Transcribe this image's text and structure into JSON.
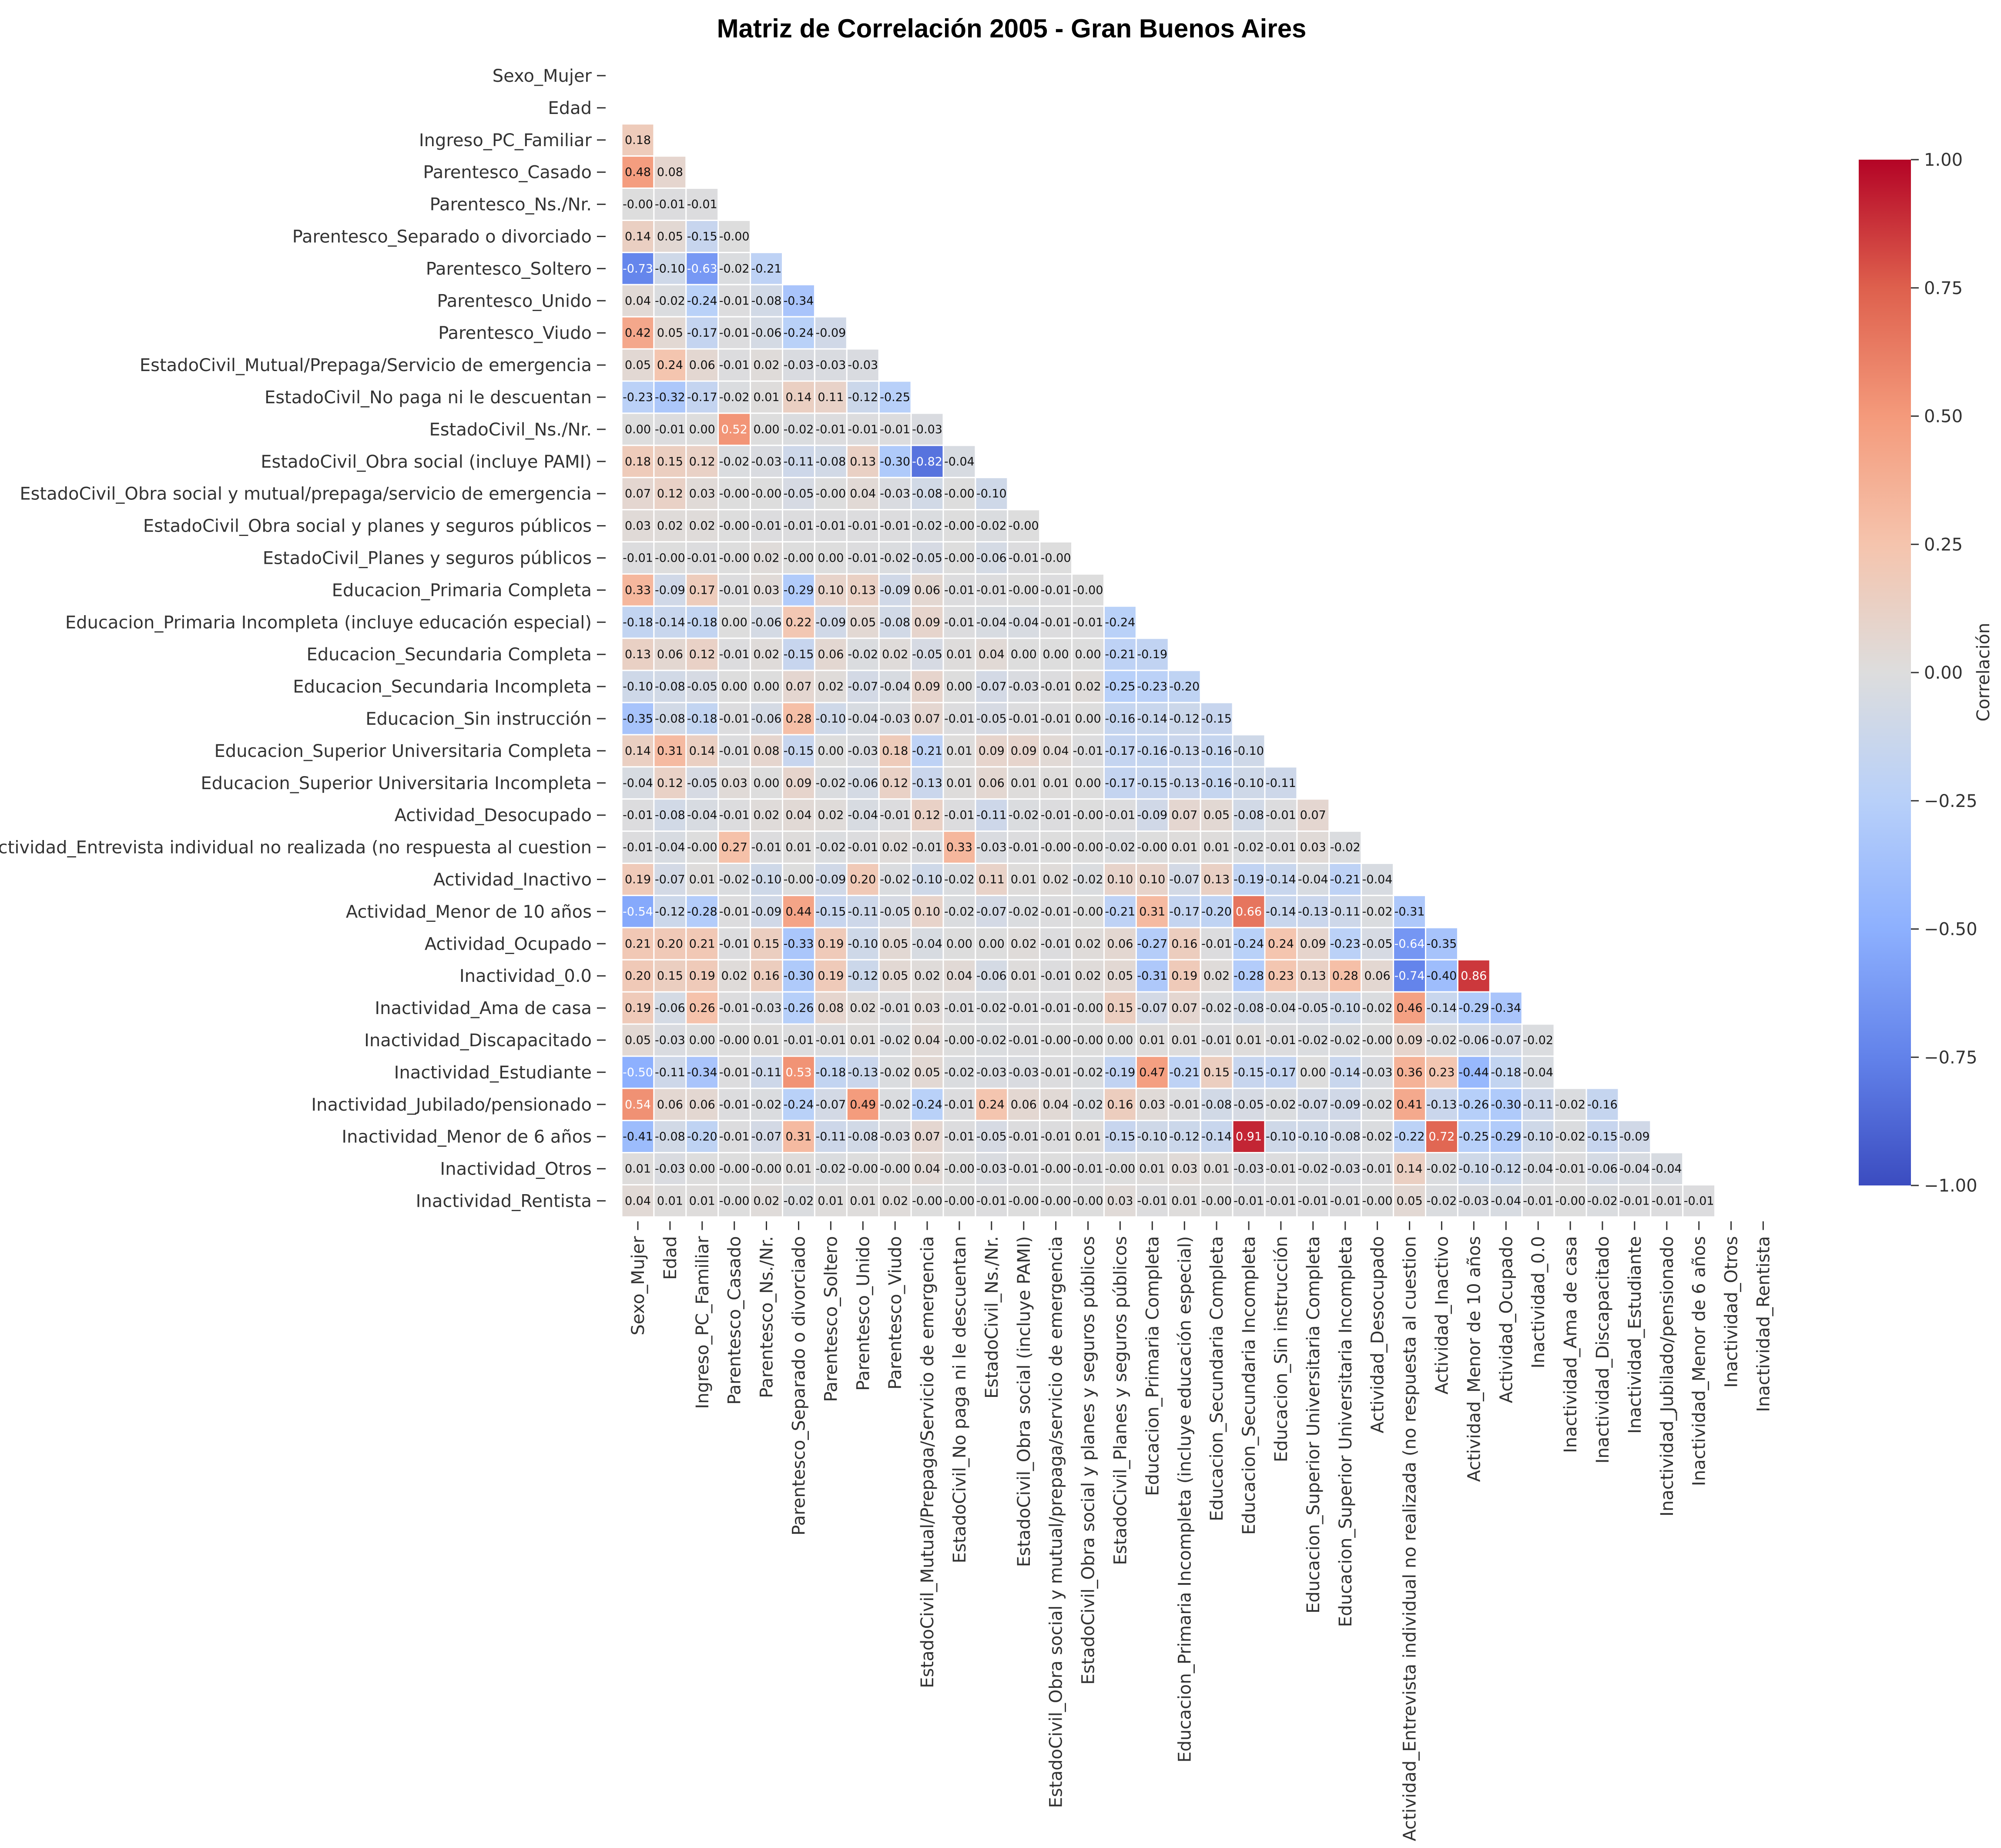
{
  "chart_data": {
    "type": "heatmap",
    "title": "Matriz de Correlación 2005 - Gran Buenos Aires",
    "colorbar_label": "Correlación",
    "colorbar_ticks": [
      "1.00",
      "0.75",
      "0.50",
      "0.25",
      "0.00",
      "−0.25",
      "−0.50",
      "−0.75",
      "−1.00"
    ],
    "colorbar_range": [
      -1,
      1
    ],
    "colormap": "coolwarm",
    "mask": "upper triangle incl. diagonal",
    "labels": [
      "Sexo_Mujer",
      "Edad",
      "Ingreso_PC_Familiar",
      "Parentesco_Casado",
      "Parentesco_Ns./Nr.",
      "Parentesco_Separado o divorciado",
      "Parentesco_Soltero",
      "Parentesco_Unido",
      "Parentesco_Viudo",
      "EstadoCivil_Mutual/Prepaga/Servicio de emergencia",
      "EstadoCivil_No paga ni le descuentan",
      "EstadoCivil_Ns./Nr.",
      "EstadoCivil_Obra social (incluye PAMI)",
      "EstadoCivil_Obra social y mutual/prepaga/servicio de emergencia",
      "EstadoCivil_Obra social y planes y seguros públicos",
      "EstadoCivil_Planes y seguros públicos",
      "Educacion_Primaria Completa",
      "Educacion_Primaria Incompleta (incluye educación especial)",
      "Educacion_Secundaria Completa",
      "Educacion_Secundaria Incompleta",
      "Educacion_Sin instrucción",
      "Educacion_Superior Universitaria Completa",
      "Educacion_Superior Universitaria Incompleta",
      "Actividad_Desocupado",
      "Actividad_Entrevista individual no realizada (no respuesta al cuestion",
      "Actividad_Inactivo",
      "Actividad_Menor de 10 años",
      "Actividad_Ocupado",
      "Inactividad_0.0",
      "Inactividad_Ama de casa",
      "Inactividad_Discapacitado",
      "Inactividad_Estudiante",
      "Inactividad_Jubilado/pensionado",
      "Inactividad_Menor de 6 años",
      "Inactividad_Otros",
      "Inactividad_Rentista"
    ],
    "values": [
      [],
      [],
      [
        "0.18"
      ],
      [
        "0.48",
        "0.08"
      ],
      [
        "-0.00",
        "-0.01",
        "-0.01"
      ],
      [
        "0.14",
        "0.05",
        "-0.15",
        "-0.00"
      ],
      [
        "-0.73",
        "-0.10",
        "-0.63",
        "-0.02",
        "-0.21"
      ],
      [
        "0.04",
        "-0.02",
        "-0.24",
        "-0.01",
        "-0.08",
        "-0.34"
      ],
      [
        "0.42",
        "0.05",
        "-0.17",
        "-0.01",
        "-0.06",
        "-0.24",
        "-0.09"
      ],
      [
        "0.05",
        "0.24",
        "0.06",
        "-0.01",
        "0.02",
        "-0.03",
        "-0.03",
        "-0.03"
      ],
      [
        "-0.23",
        "-0.32",
        "-0.17",
        "-0.02",
        "0.01",
        "0.14",
        "0.11",
        "-0.12",
        "-0.25"
      ],
      [
        "0.00",
        "-0.01",
        "0.00",
        "0.52",
        "0.00",
        "-0.02",
        "-0.01",
        "-0.01",
        "-0.01",
        "-0.03"
      ],
      [
        "0.18",
        "0.15",
        "0.12",
        "-0.02",
        "-0.03",
        "-0.11",
        "-0.08",
        "0.13",
        "-0.30",
        "-0.82",
        "-0.04"
      ],
      [
        "0.07",
        "0.12",
        "0.03",
        "-0.00",
        "-0.00",
        "-0.05",
        "-0.00",
        "0.04",
        "-0.03",
        "-0.08",
        "-0.00",
        "-0.10"
      ],
      [
        "0.03",
        "0.02",
        "0.02",
        "-0.00",
        "-0.01",
        "-0.01",
        "-0.01",
        "-0.01",
        "-0.01",
        "-0.02",
        "-0.00",
        "-0.02",
        "-0.00"
      ],
      [
        "-0.01",
        "-0.00",
        "-0.01",
        "-0.00",
        "0.02",
        "-0.00",
        "0.00",
        "-0.01",
        "-0.02",
        "-0.05",
        "-0.00",
        "-0.06",
        "-0.01",
        "-0.00"
      ],
      [
        "0.33",
        "-0.09",
        "0.17",
        "-0.01",
        "0.03",
        "-0.29",
        "0.10",
        "0.13",
        "-0.09",
        "0.06",
        "-0.01",
        "-0.01",
        "-0.00",
        "-0.01",
        "-0.00"
      ],
      [
        "-0.18",
        "-0.14",
        "-0.18",
        "0.00",
        "-0.06",
        "0.22",
        "-0.09",
        "0.05",
        "-0.08",
        "0.09",
        "-0.01",
        "-0.04",
        "-0.04",
        "-0.01",
        "-0.01",
        "-0.24"
      ],
      [
        "0.13",
        "0.06",
        "0.12",
        "-0.01",
        "0.02",
        "-0.15",
        "0.06",
        "-0.02",
        "0.02",
        "-0.05",
        "0.01",
        "0.04",
        "0.00",
        "0.00",
        "0.00",
        "-0.21",
        "-0.19"
      ],
      [
        "-0.10",
        "-0.08",
        "-0.05",
        "0.00",
        "0.00",
        "0.07",
        "0.02",
        "-0.07",
        "-0.04",
        "0.09",
        "0.00",
        "-0.07",
        "-0.03",
        "-0.01",
        "0.02",
        "-0.25",
        "-0.23",
        "-0.20"
      ],
      [
        "-0.35",
        "-0.08",
        "-0.18",
        "-0.01",
        "-0.06",
        "0.28",
        "-0.10",
        "-0.04",
        "-0.03",
        "0.07",
        "-0.01",
        "-0.05",
        "-0.01",
        "-0.01",
        "0.00",
        "-0.16",
        "-0.14",
        "-0.12",
        "-0.15"
      ],
      [
        "0.14",
        "0.31",
        "0.14",
        "-0.01",
        "0.08",
        "-0.15",
        "0.00",
        "-0.03",
        "0.18",
        "-0.21",
        "0.01",
        "0.09",
        "0.09",
        "0.04",
        "-0.01",
        "-0.17",
        "-0.16",
        "-0.13",
        "-0.16",
        "-0.10"
      ],
      [
        "-0.04",
        "0.12",
        "-0.05",
        "0.03",
        "0.00",
        "0.09",
        "-0.02",
        "-0.06",
        "0.12",
        "-0.13",
        "0.01",
        "0.06",
        "0.01",
        "0.01",
        "0.00",
        "-0.17",
        "-0.15",
        "-0.13",
        "-0.16",
        "-0.10",
        "-0.11"
      ],
      [
        "-0.01",
        "-0.08",
        "-0.04",
        "-0.01",
        "0.02",
        "0.04",
        "0.02",
        "-0.04",
        "-0.01",
        "0.12",
        "-0.01",
        "-0.11",
        "-0.02",
        "-0.01",
        "-0.00",
        "-0.01",
        "-0.09",
        "0.07",
        "0.05",
        "-0.08",
        "-0.01",
        "0.07"
      ],
      [
        "-0.01",
        "-0.04",
        "-0.00",
        "0.27",
        "-0.01",
        "0.01",
        "-0.02",
        "-0.01",
        "0.02",
        "-0.01",
        "0.33",
        "-0.03",
        "-0.01",
        "-0.00",
        "-0.00",
        "-0.02",
        "-0.00",
        "0.01",
        "0.01",
        "-0.02",
        "-0.01",
        "0.03",
        "-0.02"
      ],
      [
        "0.19",
        "-0.07",
        "0.01",
        "-0.02",
        "-0.10",
        "-0.00",
        "-0.09",
        "0.20",
        "-0.02",
        "-0.10",
        "-0.02",
        "0.11",
        "0.01",
        "0.02",
        "-0.02",
        "0.10",
        "0.10",
        "-0.07",
        "0.13",
        "-0.19",
        "-0.14",
        "-0.04",
        "-0.21",
        "-0.04"
      ],
      [
        "-0.54",
        "-0.12",
        "-0.28",
        "-0.01",
        "-0.09",
        "0.44",
        "-0.15",
        "-0.11",
        "-0.05",
        "0.10",
        "-0.02",
        "-0.07",
        "-0.02",
        "-0.01",
        "-0.00",
        "-0.21",
        "0.31",
        "-0.17",
        "-0.20",
        "0.66",
        "-0.14",
        "-0.13",
        "-0.11",
        "-0.02",
        "-0.31"
      ],
      [
        "0.21",
        "0.20",
        "0.21",
        "-0.01",
        "0.15",
        "-0.33",
        "0.19",
        "-0.10",
        "0.05",
        "-0.04",
        "0.00",
        "0.00",
        "0.02",
        "-0.01",
        "0.02",
        "0.06",
        "-0.27",
        "0.16",
        "-0.01",
        "-0.24",
        "0.24",
        "0.09",
        "-0.23",
        "-0.05",
        "-0.64",
        "-0.35"
      ],
      [
        "0.20",
        "0.15",
        "0.19",
        "0.02",
        "0.16",
        "-0.30",
        "0.19",
        "-0.12",
        "0.05",
        "0.02",
        "0.04",
        "-0.06",
        "0.01",
        "-0.01",
        "0.02",
        "0.05",
        "-0.31",
        "0.19",
        "0.02",
        "-0.28",
        "0.23",
        "0.13",
        "0.28",
        "0.06",
        "-0.74",
        "-0.40",
        "0.86"
      ],
      [
        "0.19",
        "-0.06",
        "0.26",
        "-0.01",
        "-0.03",
        "-0.26",
        "0.08",
        "0.02",
        "-0.01",
        "0.03",
        "-0.01",
        "-0.02",
        "-0.01",
        "-0.01",
        "-0.00",
        "0.15",
        "-0.07",
        "0.07",
        "-0.02",
        "-0.08",
        "-0.04",
        "-0.05",
        "-0.10",
        "-0.02",
        "0.46",
        "-0.14",
        "-0.29",
        "-0.34"
      ],
      [
        "0.05",
        "-0.03",
        "0.00",
        "-0.00",
        "0.01",
        "-0.01",
        "-0.01",
        "0.01",
        "-0.02",
        "0.04",
        "-0.00",
        "-0.02",
        "-0.01",
        "-0.00",
        "-0.00",
        "0.00",
        "0.01",
        "0.01",
        "-0.01",
        "0.01",
        "-0.01",
        "-0.02",
        "-0.02",
        "-0.00",
        "0.09",
        "-0.02",
        "-0.06",
        "-0.07",
        "-0.02"
      ],
      [
        "-0.50",
        "-0.11",
        "-0.34",
        "-0.01",
        "-0.11",
        "0.53",
        "-0.18",
        "-0.13",
        "-0.02",
        "0.05",
        "-0.02",
        "-0.03",
        "-0.03",
        "-0.01",
        "-0.02",
        "-0.19",
        "0.47",
        "-0.21",
        "0.15",
        "-0.15",
        "-0.17",
        "0.00",
        "-0.14",
        "-0.03",
        "0.36",
        "0.23",
        "-0.44",
        "-0.18",
        "-0.04"
      ],
      [
        "0.54",
        "0.06",
        "0.06",
        "-0.01",
        "-0.02",
        "-0.24",
        "-0.07",
        "0.49",
        "-0.02",
        "-0.24",
        "-0.01",
        "0.24",
        "0.06",
        "0.04",
        "-0.02",
        "0.16",
        "0.03",
        "-0.01",
        "-0.08",
        "-0.05",
        "-0.02",
        "-0.07",
        "-0.09",
        "-0.02",
        "0.41",
        "-0.13",
        "-0.26",
        "-0.30",
        "-0.11",
        "-0.02",
        "-0.16"
      ],
      [
        "-0.41",
        "-0.08",
        "-0.20",
        "-0.01",
        "-0.07",
        "0.31",
        "-0.11",
        "-0.08",
        "-0.03",
        "0.07",
        "-0.01",
        "-0.05",
        "-0.01",
        "-0.01",
        "0.01",
        "-0.15",
        "-0.10",
        "-0.12",
        "-0.14",
        "0.91",
        "-0.10",
        "-0.10",
        "-0.08",
        "-0.02",
        "-0.22",
        "0.72",
        "-0.25",
        "-0.29",
        "-0.10",
        "-0.02",
        "-0.15",
        "-0.09"
      ],
      [
        "0.01",
        "-0.03",
        "0.00",
        "-0.00",
        "-0.00",
        "0.01",
        "-0.02",
        "-0.00",
        "-0.00",
        "0.04",
        "-0.00",
        "-0.03",
        "-0.01",
        "-0.00",
        "-0.01",
        "-0.00",
        "0.01",
        "0.03",
        "0.01",
        "-0.03",
        "-0.01",
        "-0.02",
        "-0.03",
        "-0.01",
        "0.14",
        "-0.02",
        "-0.10",
        "-0.12",
        "-0.04",
        "-0.01",
        "-0.06",
        "-0.04",
        "-0.04"
      ],
      [
        "0.04",
        "0.01",
        "0.01",
        "-0.00",
        "0.02",
        "-0.02",
        "0.01",
        "0.01",
        "0.02",
        "-0.00",
        "-0.00",
        "-0.01",
        "-0.00",
        "-0.00",
        "-0.00",
        "0.03",
        "-0.01",
        "0.01",
        "-0.00",
        "-0.01",
        "-0.01",
        "-0.01",
        "-0.01",
        "-0.00",
        "0.05",
        "-0.02",
        "-0.03",
        "-0.04",
        "-0.01",
        "-0.00",
        "-0.02",
        "-0.01",
        "-0.01",
        "-0.01"
      ]
    ]
  }
}
